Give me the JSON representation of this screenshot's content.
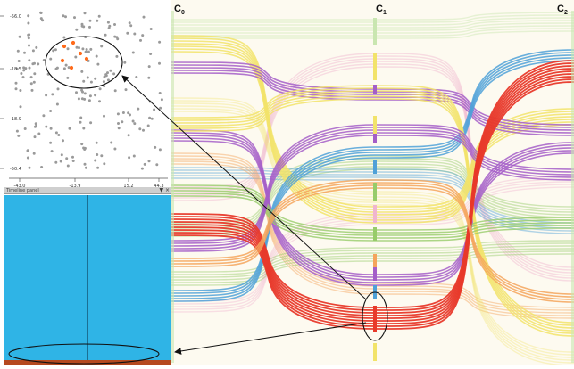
{
  "scatter": {
    "y_ticks": [
      "-56.0",
      "-18.5",
      "-18.9",
      "-50.4"
    ],
    "x_ticks": [
      "-43.0",
      "-13.9",
      "15.2",
      "44.3"
    ]
  },
  "panel": {
    "title": "Timeline panel",
    "close_glyph": "▼ ×"
  },
  "columns": [
    {
      "base": "C",
      "sub": "0"
    },
    {
      "base": "C",
      "sub": "1"
    },
    {
      "base": "C",
      "sub": "2"
    }
  ],
  "colors": {
    "purple": "#a45ec8",
    "yellow": "#f2e36a",
    "red": "#e8392a",
    "blue": "#4fa1d8",
    "green": "#97cc6a",
    "orange": "#f4a45c",
    "pink": "#f0b5cf",
    "lightgreen": "#c9e6b0",
    "panel_blue": "#2fb4e6",
    "highlight": "#ff6a1a"
  }
}
